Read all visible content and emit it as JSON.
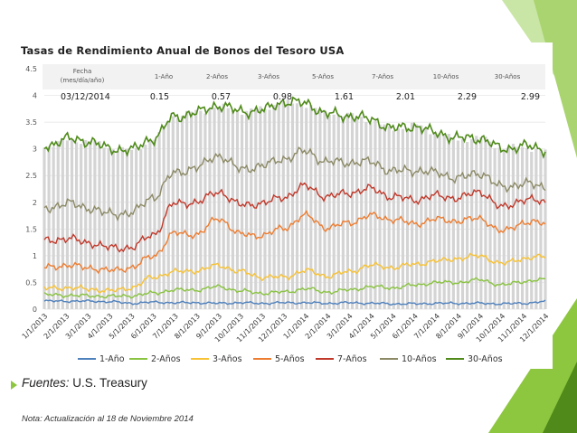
{
  "colors": {
    "accent": "#8dc63f",
    "dark_accent": "#4f8a1a"
  },
  "source": {
    "label": "Fuentes:",
    "text": "U.S. Treasury"
  },
  "note": "Nota: Actualización al 18 de Noviembre 2014",
  "chart_data": {
    "type": "line",
    "title": "Tasas de Rendimiento Anual de Bonos del Tesoro USA",
    "ylim": [
      0,
      4.5
    ],
    "yticks": [
      "0",
      "0.5",
      "1",
      "1.5",
      "2",
      "2.5",
      "3",
      "3.5",
      "4",
      "4.5"
    ],
    "x": [
      "1/1/2013",
      "2/1/2013",
      "3/1/2013",
      "4/1/2013",
      "5/1/2013",
      "6/1/2013",
      "7/1/2013",
      "8/1/2013",
      "9/1/2013",
      "10/1/2013",
      "11/1/2013",
      "12/1/2013",
      "1/1/2014",
      "2/1/2014",
      "3/1/2014",
      "4/1/2014",
      "5/1/2014",
      "6/1/2014",
      "7/1/2014",
      "8/1/2014",
      "9/1/2014",
      "10/1/2014",
      "11/1/2014",
      "12/1/2014"
    ],
    "grid": true,
    "legend_position": "bottom",
    "header_table": {
      "columns": [
        "Fecha\n(mes/día/año)",
        "1-Año",
        "2-Años",
        "3-Años",
        "5-Años",
        "7-Años",
        "10-Años",
        "30-Años"
      ],
      "row": [
        "03/12/2014",
        "0.15",
        "0.57",
        "0.98",
        "1.61",
        "2.01",
        "2.29",
        "2.99"
      ]
    },
    "series": [
      {
        "name": "1-Año",
        "color": "#4f81bd",
        "values": [
          0.15,
          0.15,
          0.15,
          0.14,
          0.11,
          0.13,
          0.12,
          0.12,
          0.11,
          0.12,
          0.11,
          0.12,
          0.12,
          0.11,
          0.12,
          0.11,
          0.1,
          0.1,
          0.11,
          0.11,
          0.11,
          0.1,
          0.11,
          0.14
        ]
      },
      {
        "name": "2-Años",
        "color": "#8ac342",
        "values": [
          0.27,
          0.26,
          0.25,
          0.24,
          0.25,
          0.3,
          0.36,
          0.36,
          0.42,
          0.34,
          0.3,
          0.32,
          0.38,
          0.32,
          0.36,
          0.42,
          0.4,
          0.45,
          0.5,
          0.5,
          0.55,
          0.45,
          0.52,
          0.55
        ]
      },
      {
        "name": "3-Años",
        "color": "#f7c236",
        "values": [
          0.39,
          0.4,
          0.38,
          0.34,
          0.4,
          0.6,
          0.7,
          0.72,
          0.82,
          0.7,
          0.6,
          0.6,
          0.72,
          0.62,
          0.7,
          0.82,
          0.78,
          0.84,
          0.9,
          0.95,
          1.0,
          0.85,
          0.95,
          0.98
        ]
      },
      {
        "name": "5-Años",
        "color": "#ed7d31",
        "values": [
          0.78,
          0.82,
          0.78,
          0.72,
          0.78,
          1.0,
          1.42,
          1.4,
          1.7,
          1.4,
          1.38,
          1.52,
          1.75,
          1.52,
          1.62,
          1.75,
          1.68,
          1.6,
          1.68,
          1.65,
          1.7,
          1.45,
          1.62,
          1.61
        ]
      },
      {
        "name": "7-Años",
        "color": "#c0392b",
        "values": [
          1.28,
          1.32,
          1.25,
          1.15,
          1.15,
          1.4,
          1.98,
          2.0,
          2.2,
          1.95,
          1.98,
          2.1,
          2.3,
          2.1,
          2.18,
          2.25,
          2.1,
          2.05,
          2.12,
          2.08,
          2.2,
          1.9,
          2.05,
          2.01
        ]
      },
      {
        "name": "10-Años",
        "color": "#8c8a66",
        "values": [
          1.88,
          1.98,
          1.9,
          1.78,
          1.8,
          2.1,
          2.55,
          2.65,
          2.88,
          2.62,
          2.68,
          2.82,
          2.95,
          2.75,
          2.75,
          2.75,
          2.58,
          2.6,
          2.55,
          2.45,
          2.55,
          2.28,
          2.35,
          2.29
        ]
      },
      {
        "name": "30-Años",
        "color": "#4f8a1a",
        "values": [
          3.05,
          3.18,
          3.15,
          3.0,
          2.98,
          3.2,
          3.6,
          3.68,
          3.82,
          3.7,
          3.72,
          3.88,
          3.85,
          3.65,
          3.62,
          3.55,
          3.38,
          3.42,
          3.3,
          3.2,
          3.2,
          3.0,
          3.05,
          2.99
        ]
      }
    ]
  }
}
